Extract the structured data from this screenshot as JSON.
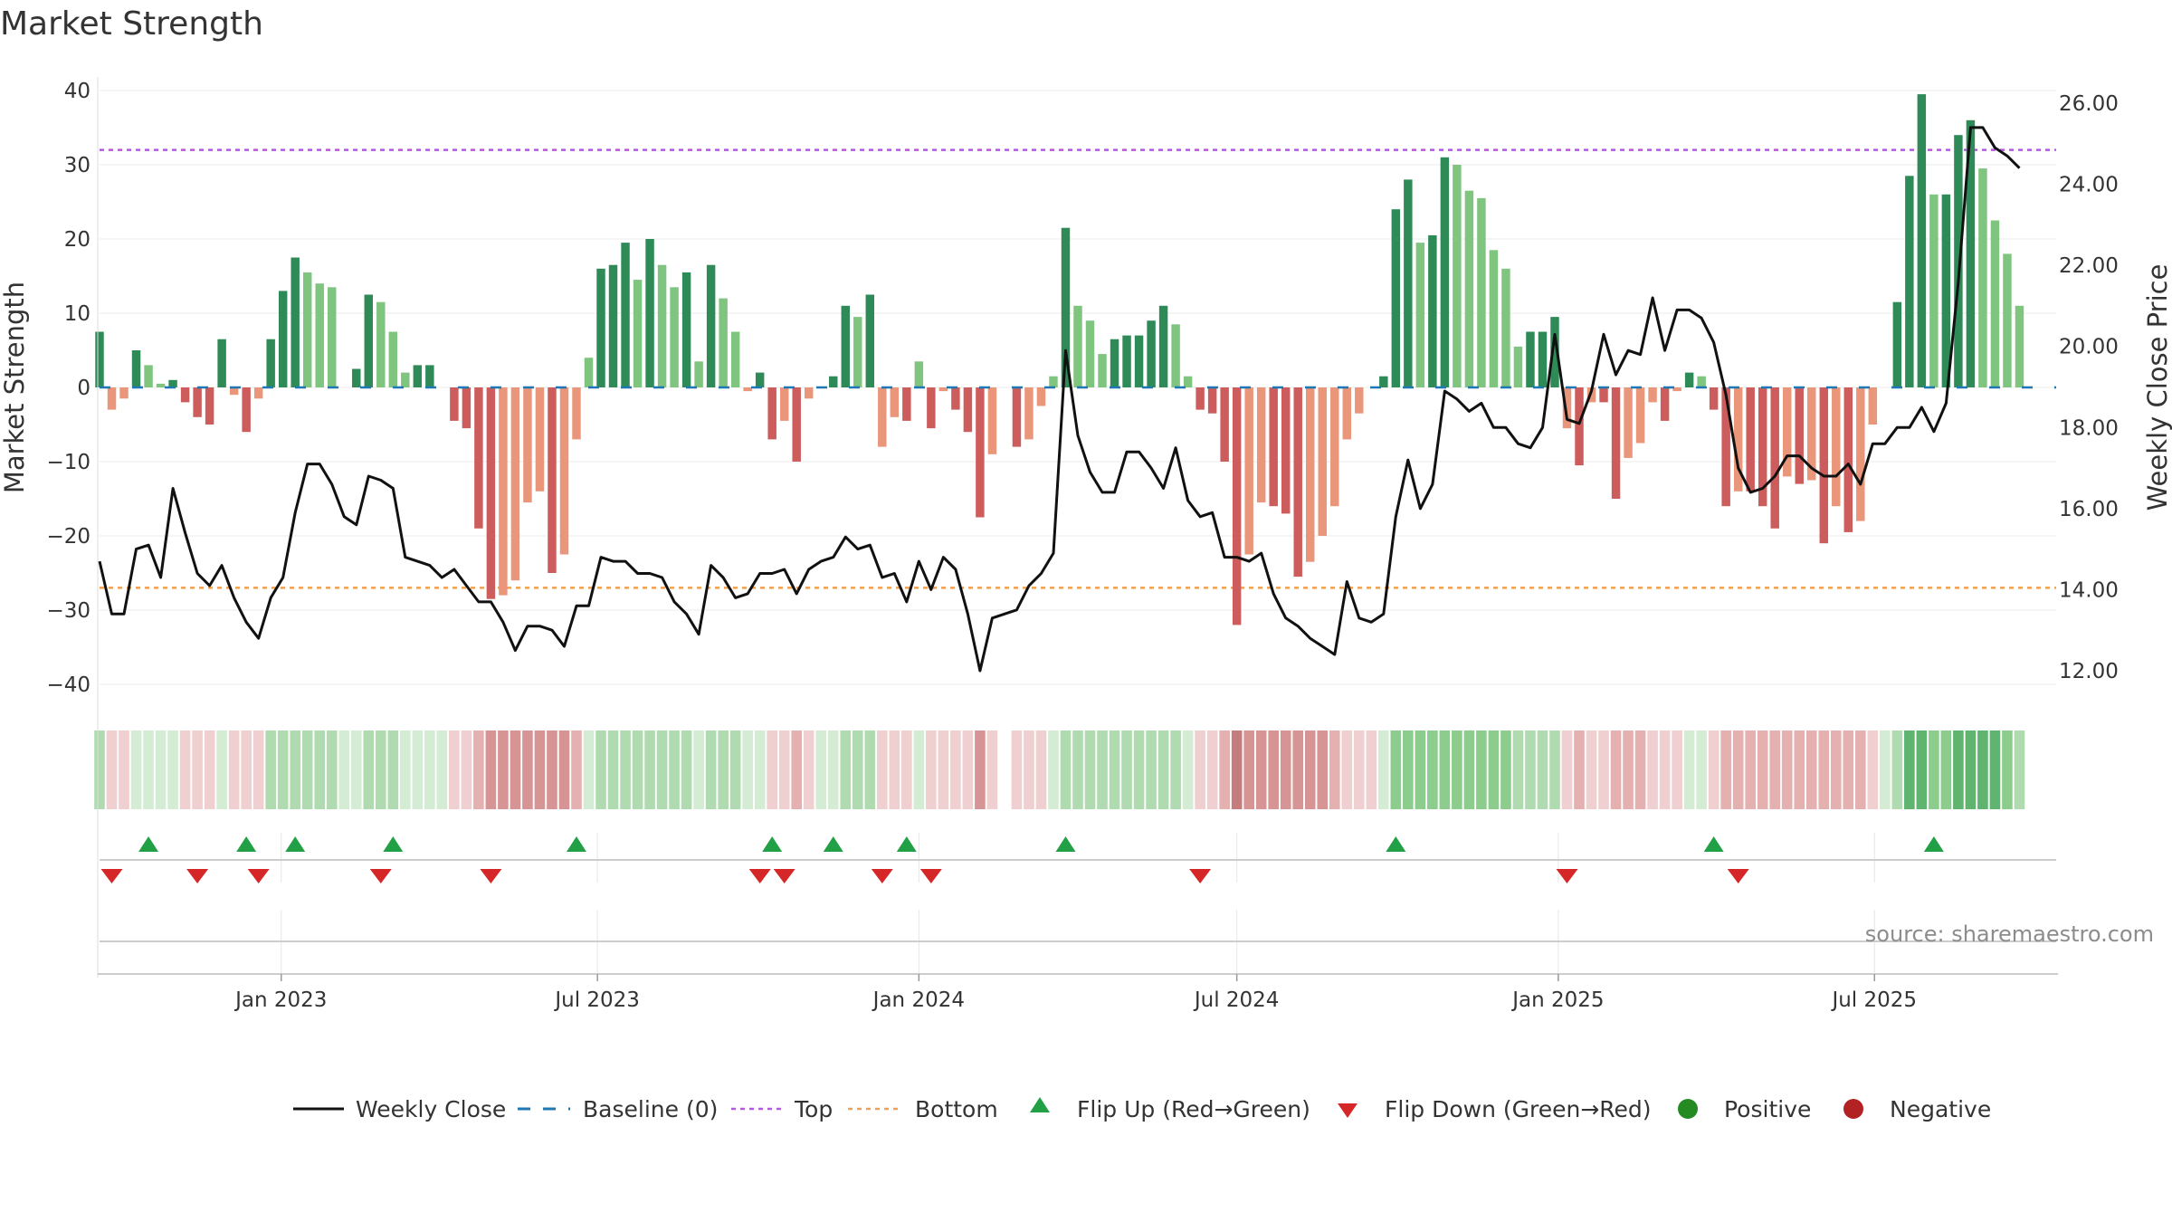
{
  "title": "Market Strength",
  "source": "source: sharemaestro.com",
  "chart_data": {
    "type": "bar",
    "title": "Market Strength",
    "ylabel_left": "Market Strength",
    "ylabel_right": "Weekly Close Price",
    "ylim_left": [
      -44,
      42
    ],
    "ylim_right": [
      11.0,
      26.6
    ],
    "yticks_left": [
      "40",
      "30",
      "20",
      "10",
      "0",
      "−10",
      "−20",
      "−30",
      "−40"
    ],
    "yticks_right": [
      "26.00",
      "24.00",
      "22.00",
      "20.00",
      "18.00",
      "16.00",
      "14.00",
      "12.00"
    ],
    "x_range": [
      "2022-09-19",
      "2025-10-13"
    ],
    "x_ticks": [
      {
        "date": "2023-01-01",
        "label": "Jan 2023"
      },
      {
        "date": "2023-07-01",
        "label": "Jul 2023"
      },
      {
        "date": "2024-01-01",
        "label": "Jan 2024"
      },
      {
        "date": "2024-07-01",
        "label": "Jul 2024"
      },
      {
        "date": "2025-01-01",
        "label": "Jan 2025"
      },
      {
        "date": "2025-07-01",
        "label": "Jul 2025"
      }
    ],
    "top_line": 32,
    "bottom_line": -27,
    "start_date": "2022-09-19",
    "weekly_strength": [
      7.5,
      -3,
      -1.5,
      5,
      3,
      0.5,
      1,
      -2,
      -4,
      -5,
      6.5,
      -1,
      -6,
      -1.5,
      6.5,
      13,
      17.5,
      15.5,
      14,
      13.5,
      0,
      2.5,
      12.5,
      11.5,
      7.5,
      2,
      3,
      3,
      0,
      -4.5,
      -5.5,
      -19,
      -28.5,
      -28,
      -26,
      -15.5,
      -14,
      -25,
      -22.5,
      -7,
      4,
      16,
      16.5,
      19.5,
      14.5,
      20,
      16.5,
      13.5,
      15.5,
      3.5,
      16.5,
      12,
      7.5,
      -0.5,
      2,
      -7,
      -4.5,
      -10,
      -1.5,
      0,
      1.5,
      11,
      9.5,
      12.5,
      -8,
      -4,
      -4.5,
      3.5,
      -5.5,
      -0.5,
      -3,
      -6,
      -17.5,
      -9,
      0,
      -8,
      -7,
      -2.5,
      1.5,
      21.5,
      11,
      9,
      4.5,
      6.5,
      7,
      7,
      9,
      11,
      8.5,
      1.5,
      -3,
      -3.5,
      -10,
      -32,
      -22.5,
      -15.5,
      -16,
      -17,
      -25.5,
      -23.5,
      -20,
      -16,
      -7,
      -3.5,
      0,
      1.5,
      24,
      28,
      19.5,
      20.5,
      31,
      30,
      26.5,
      25.5,
      18.5,
      16,
      5.5,
      7.5,
      7.5,
      9.5,
      -5.5,
      -10.5,
      -2,
      -2,
      -15,
      -9.5,
      -7.5,
      -2,
      -4.5,
      -0.5,
      2,
      1.5,
      -3,
      -16,
      -14,
      -14,
      -16,
      -19,
      -12,
      -13,
      -12.5,
      -21,
      -16,
      -19.5,
      -18,
      -5,
      0,
      11.5,
      28.5,
      39.5,
      26,
      26,
      34,
      36,
      29.5,
      22.5,
      18,
      11
    ],
    "weekly_close": [
      14.7,
      13.4,
      13.4,
      15.0,
      15.1,
      14.3,
      16.5,
      15.4,
      14.4,
      14.1,
      14.6,
      13.8,
      13.2,
      12.8,
      13.8,
      14.3,
      15.9,
      17.1,
      17.1,
      16.6,
      15.8,
      15.6,
      16.8,
      16.7,
      16.5,
      14.8,
      14.7,
      14.6,
      14.3,
      14.5,
      14.1,
      13.7,
      13.7,
      13.2,
      12.5,
      13.1,
      13.1,
      13.0,
      12.6,
      13.6,
      13.6,
      14.8,
      14.7,
      14.7,
      14.4,
      14.4,
      14.3,
      13.7,
      13.4,
      12.9,
      14.6,
      14.3,
      13.8,
      13.9,
      14.4,
      14.4,
      14.5,
      13.9,
      14.5,
      14.7,
      14.8,
      15.3,
      15.0,
      15.1,
      14.3,
      14.4,
      13.7,
      14.7,
      14.0,
      14.8,
      14.5,
      13.4,
      12.0,
      13.3,
      13.4,
      13.5,
      14.1,
      14.4,
      14.9,
      19.9,
      17.8,
      16.9,
      16.4,
      16.4,
      17.4,
      17.4,
      17.0,
      16.5,
      17.5,
      16.2,
      15.8,
      15.9,
      14.8,
      14.8,
      14.7,
      14.9,
      13.9,
      13.3,
      13.1,
      12.8,
      12.6,
      12.4,
      14.2,
      13.3,
      13.2,
      13.4,
      15.8,
      17.2,
      16.0,
      16.6,
      18.9,
      18.7,
      18.4,
      18.6,
      18.0,
      18.0,
      17.6,
      17.5,
      18.0,
      20.3,
      18.2,
      18.1,
      18.9,
      20.3,
      19.3,
      19.9,
      19.8,
      21.2,
      19.9,
      20.9,
      20.9,
      20.7,
      20.1,
      18.8,
      17.0,
      16.4,
      16.5,
      16.8,
      17.3,
      17.3,
      17.0,
      16.8,
      16.8,
      17.1,
      16.6,
      17.6,
      17.6,
      18.0,
      18.0,
      18.5,
      17.9,
      18.6,
      21.6,
      25.4,
      25.4,
      24.9,
      24.7,
      24.4
    ],
    "regime_bands": [
      2,
      -1,
      -1,
      1,
      1,
      1,
      1,
      -1,
      -1,
      -1,
      1,
      -1,
      -1,
      -1,
      2,
      2,
      2,
      2,
      2,
      2,
      1,
      1,
      2,
      2,
      2,
      1,
      1,
      1,
      1,
      -1,
      -1,
      -2,
      -3,
      -3,
      -3,
      -3,
      -3,
      -3,
      -3,
      -2,
      1,
      2,
      2,
      2,
      2,
      2,
      2,
      2,
      2,
      1,
      2,
      2,
      2,
      1,
      1,
      -1,
      -1,
      -2,
      -1,
      1,
      1,
      2,
      2,
      2,
      -1,
      -1,
      -1,
      1,
      -1,
      -1,
      -1,
      -1,
      -3,
      -1,
      0,
      -1,
      -1,
      -1,
      1,
      2,
      2,
      2,
      2,
      2,
      2,
      2,
      2,
      2,
      2,
      1,
      -1,
      -1,
      -2,
      -4,
      -3,
      -3,
      -3,
      -3,
      -3,
      -3,
      -3,
      -2,
      -1,
      -1,
      -1,
      1,
      3,
      3,
      3,
      3,
      3,
      3,
      3,
      3,
      3,
      3,
      2,
      2,
      2,
      2,
      -1,
      -2,
      -1,
      -1,
      -2,
      -2,
      -2,
      -1,
      -1,
      -1,
      1,
      1,
      -1,
      -2,
      -2,
      -2,
      -2,
      -2,
      -2,
      -2,
      -2,
      -2,
      -2,
      -2,
      -2,
      -1,
      1,
      2,
      4,
      4,
      3,
      3,
      4,
      4,
      4,
      4,
      3,
      2
    ],
    "flip_up": [
      "2022-10-17",
      "2022-12-12",
      "2023-01-09",
      "2023-03-06",
      "2023-06-19",
      "2023-10-09",
      "2023-11-13",
      "2023-12-25",
      "2024-03-25",
      "2024-09-30",
      "2025-03-31",
      "2025-08-04"
    ],
    "flip_down": [
      "2022-09-26",
      "2022-11-14",
      "2022-12-19",
      "2023-02-27",
      "2023-05-01",
      "2023-10-02",
      "2023-10-16",
      "2023-12-11",
      "2024-01-08",
      "2024-06-10",
      "2025-01-06",
      "2025-04-14"
    ],
    "legend": [
      "Weekly Close",
      "Baseline (0)",
      "Top",
      "Bottom",
      "Flip Up (Red→Green)",
      "Flip Down (Green→Red)",
      "Positive",
      "Negative"
    ],
    "colors": {
      "strong_positive": "#2e8b57",
      "light_positive": "#7fc47f",
      "strong_negative": "#cd5c5c",
      "light_negative": "#e9967a",
      "top": "#b05cd6",
      "bottom": "#f0a050",
      "baseline": "#1f77b4",
      "close": "#111111",
      "flip_up": "#22a045",
      "flip_down": "#d62728",
      "positive_dot": "#238b22",
      "negative_dot": "#b22222"
    }
  }
}
